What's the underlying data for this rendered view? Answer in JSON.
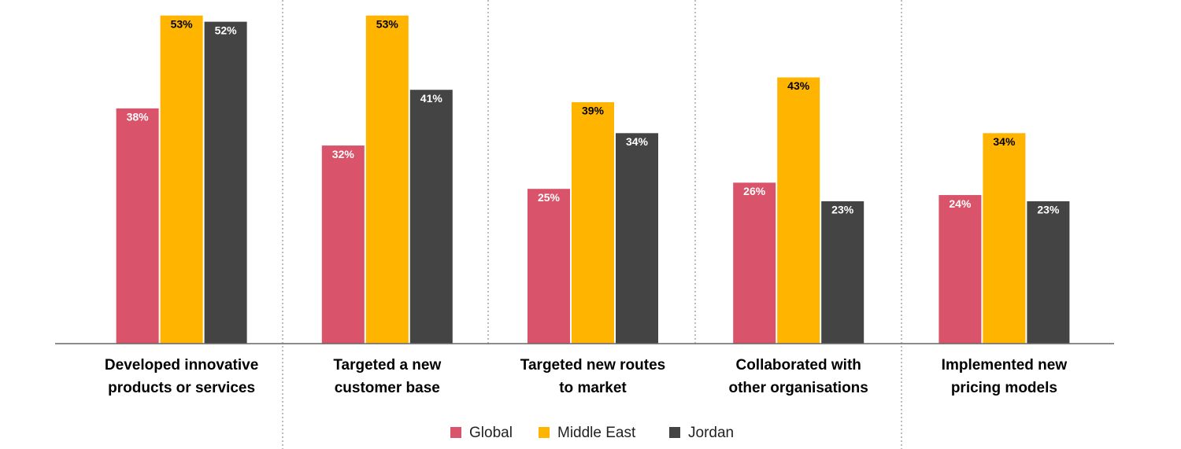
{
  "chart_data": {
    "type": "bar",
    "categories": [
      "Developed innovative\nproducts or services",
      "Targeted a new\ncustomer base",
      "Targeted new routes\nto market",
      "Collaborated with\nother organisations",
      "Implemented new\npricing models"
    ],
    "series": [
      {
        "name": "Global",
        "color": "#d9536a",
        "values": [
          38,
          32,
          25,
          26,
          24
        ],
        "value_labels": [
          "38%",
          "32%",
          "25%",
          "26%",
          "24%"
        ],
        "label_color": "#ffffff"
      },
      {
        "name": "Middle East",
        "color": "#ffb400",
        "values": [
          53,
          53,
          39,
          43,
          34
        ],
        "value_labels": [
          "53%",
          "53%",
          "39%",
          "43%",
          "34%"
        ],
        "label_color": "#000000"
      },
      {
        "name": "Jordan",
        "color": "#444444",
        "values": [
          52,
          41,
          34,
          23,
          23
        ],
        "value_labels": [
          "52%",
          "41%",
          "34%",
          "23%",
          "23%"
        ],
        "label_color": "#ffffff"
      }
    ],
    "ylim": [
      0,
      55
    ],
    "legend": "bottom"
  }
}
